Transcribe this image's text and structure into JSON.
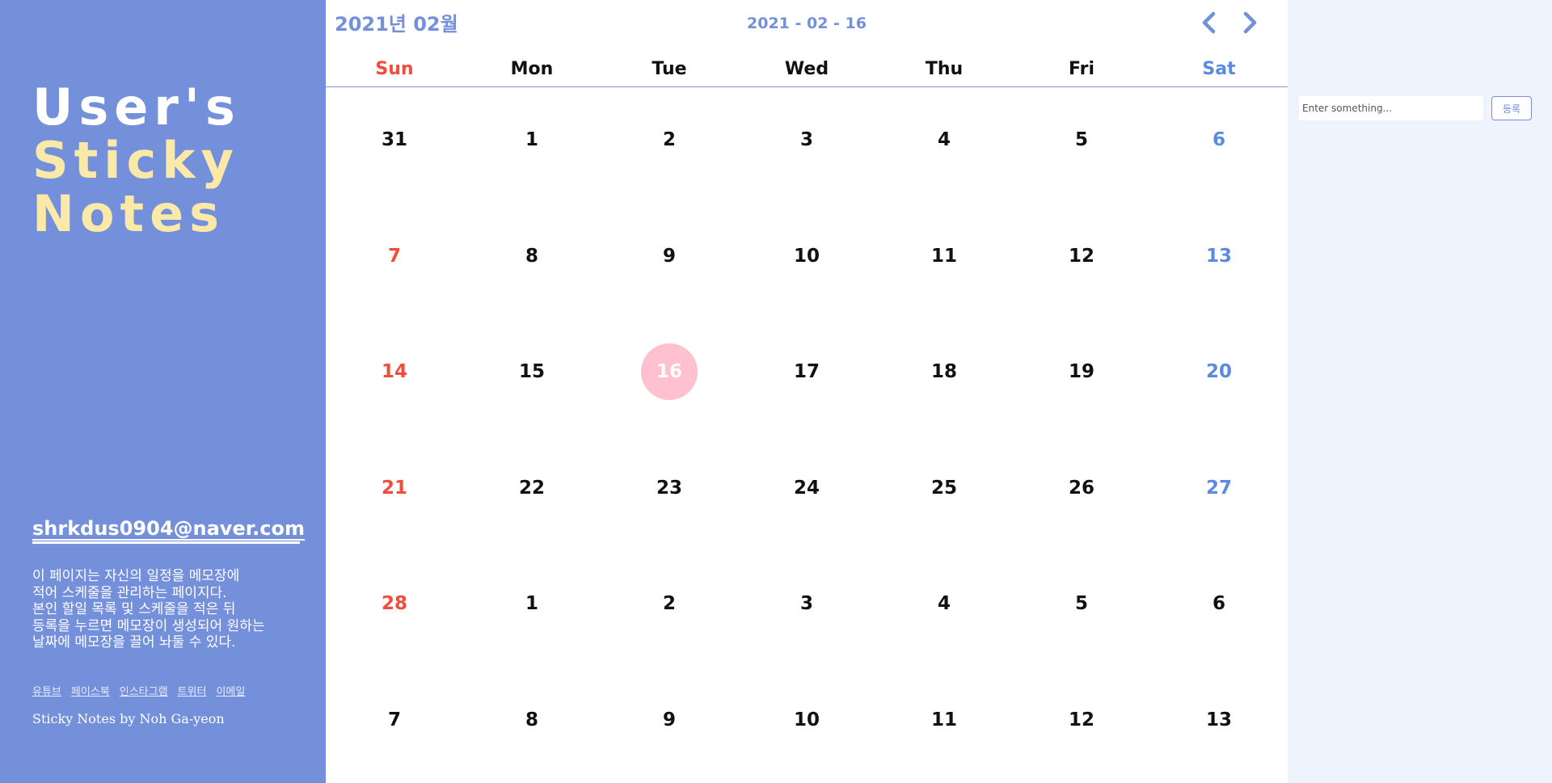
{
  "sidebar": {
    "logo": {
      "line1": "User's",
      "line2": "Sticky",
      "line3": "Notes"
    },
    "email": "shrkdus0904@naver.com",
    "description": "이 페이지는 자신의 일정을 메모장에\n적어 스케줄을 관리하는 페이지다.\n본인 할일 목록 및 스케줄을 적은 뒤\n등록을 누르면 메모장이 생성되어 원하는\n날짜에 메모장을 끌어 놔둘 수 있다.",
    "social_links": [
      "유튜브",
      "페이스북",
      "인스타그램",
      "트위터",
      "이메일"
    ],
    "credit": "Sticky Notes by Noh Ga-yeon",
    "colors": {
      "background": "#7590db",
      "logo_accent": "#fbe9a8"
    }
  },
  "calendar": {
    "month_title": "2021년 02월",
    "today_date": "2021 - 02 - 16",
    "nav": {
      "prev_icon": "chevron-left-icon",
      "next_icon": "chevron-right-icon"
    },
    "weekdays": [
      "Sun",
      "Mon",
      "Tue",
      "Wed",
      "Thu",
      "Fri",
      "Sat"
    ],
    "weeks": [
      [
        {
          "day": "31",
          "other": true
        },
        {
          "day": "1"
        },
        {
          "day": "2"
        },
        {
          "day": "3"
        },
        {
          "day": "4"
        },
        {
          "day": "5"
        },
        {
          "day": "6"
        }
      ],
      [
        {
          "day": "7"
        },
        {
          "day": "8"
        },
        {
          "day": "9"
        },
        {
          "day": "10"
        },
        {
          "day": "11"
        },
        {
          "day": "12"
        },
        {
          "day": "13"
        }
      ],
      [
        {
          "day": "14"
        },
        {
          "day": "15"
        },
        {
          "day": "16",
          "today": true
        },
        {
          "day": "17"
        },
        {
          "day": "18"
        },
        {
          "day": "19"
        },
        {
          "day": "20"
        }
      ],
      [
        {
          "day": "21"
        },
        {
          "day": "22"
        },
        {
          "day": "23"
        },
        {
          "day": "24"
        },
        {
          "day": "25"
        },
        {
          "day": "26"
        },
        {
          "day": "27"
        }
      ],
      [
        {
          "day": "28"
        },
        {
          "day": "1",
          "other": true
        },
        {
          "day": "2",
          "other": true
        },
        {
          "day": "3",
          "other": true
        },
        {
          "day": "4",
          "other": true
        },
        {
          "day": "5",
          "other": true
        },
        {
          "day": "6",
          "other": true
        }
      ],
      [
        {
          "day": "7",
          "other": true
        },
        {
          "day": "8",
          "other": true
        },
        {
          "day": "9",
          "other": true
        },
        {
          "day": "10",
          "other": true
        },
        {
          "day": "11",
          "other": true
        },
        {
          "day": "12",
          "other": true
        },
        {
          "day": "13",
          "other": true
        }
      ]
    ],
    "colors": {
      "sunday": "#f44b3a",
      "saturday": "#5b8be0",
      "today_highlight": "#ffc0d0",
      "accent": "#7590db"
    }
  },
  "panel": {
    "input_placeholder": "Enter something...",
    "input_value": "",
    "button_label": "등록",
    "background": "#eef3fd"
  }
}
